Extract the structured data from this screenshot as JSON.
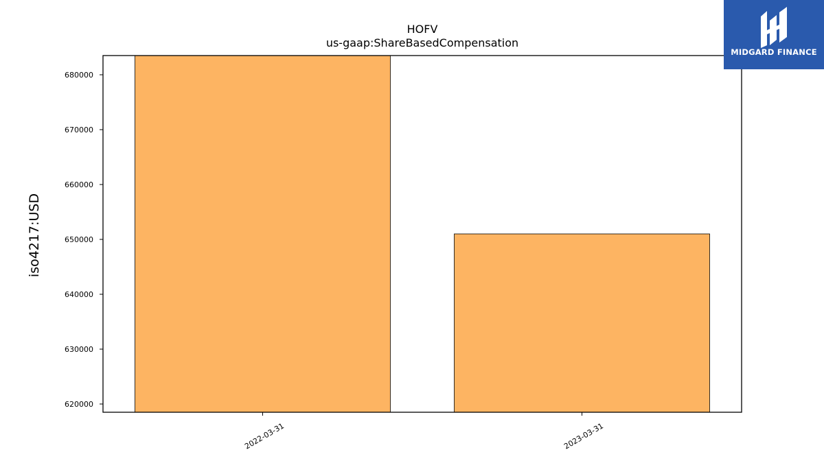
{
  "brand": {
    "name": "MIDGARD FINANCE",
    "bg_color": "#2a5aad"
  },
  "chart_data": {
    "type": "bar",
    "title": "HOFV",
    "subtitle": "us-gaap:ShareBasedCompensation",
    "ylabel": "iso4217:USD",
    "xlabel": "",
    "categories": [
      "2022-03-31",
      "2023-03-31"
    ],
    "values": [
      684000,
      651000
    ],
    "ylim": [
      618500,
      683500
    ],
    "yticks": [
      620000,
      630000,
      640000,
      650000,
      660000,
      670000,
      680000
    ],
    "bar_color": "#fdb462",
    "edge_color": "#000000",
    "grid": false,
    "legend": "none"
  }
}
